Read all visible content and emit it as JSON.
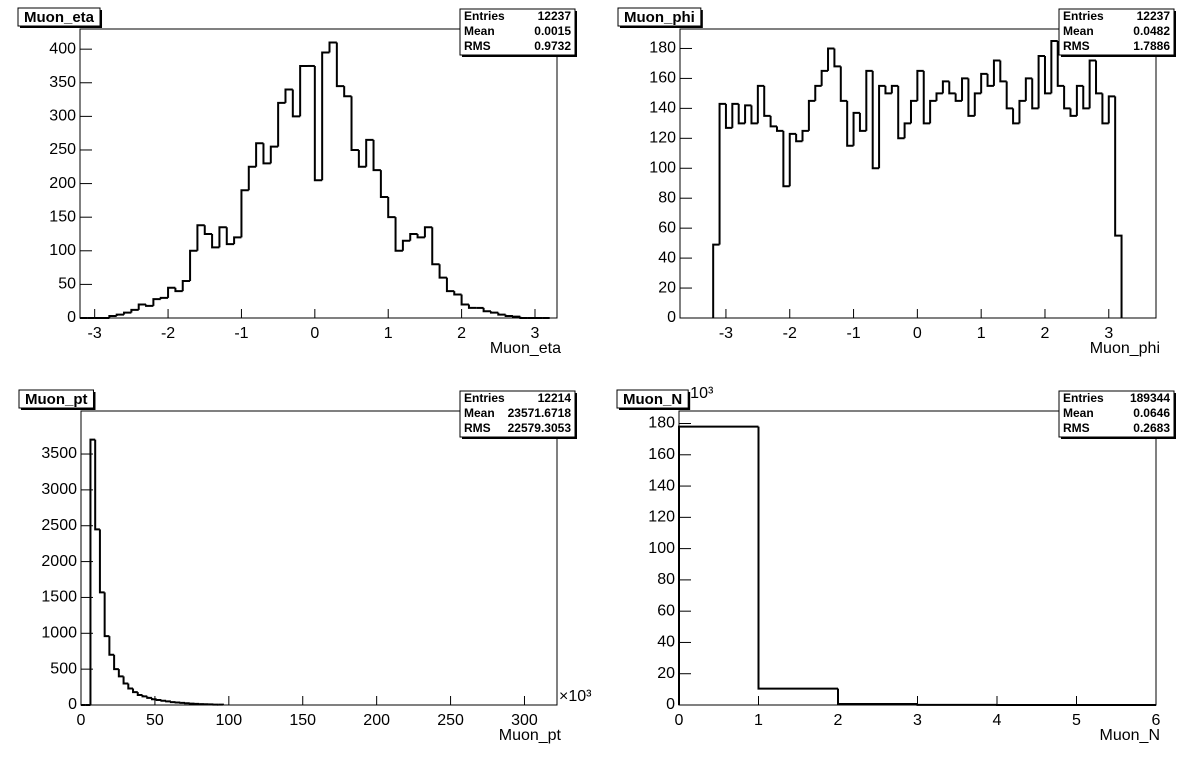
{
  "chart_data": [
    {
      "type": "histogram",
      "title": "Muon_eta",
      "x_label": "Muon_eta",
      "stats": [
        {
          "label": "Entries",
          "value": 12237
        },
        {
          "label": "Mean",
          "value": 0.0015
        },
        {
          "label": "RMS",
          "value": 0.9732
        }
      ],
      "bins": [
        -3.2,
        -3.1,
        -3.0,
        -2.9,
        -2.8,
        -2.7,
        -2.6,
        -2.5,
        -2.4,
        -2.3,
        -2.2,
        -2.1,
        -2.0,
        -1.9,
        -1.8,
        -1.7,
        -1.6,
        -1.5,
        -1.4,
        -1.3,
        -1.2,
        -1.1,
        -1.0,
        -0.9,
        -0.8,
        -0.7,
        -0.6,
        -0.5,
        -0.4,
        -0.3,
        -0.2,
        -0.1,
        0.0,
        0.1,
        0.2,
        0.3,
        0.4,
        0.5,
        0.6,
        0.7,
        0.8,
        0.9,
        1.0,
        1.1,
        1.2,
        1.3,
        1.4,
        1.5,
        1.6,
        1.7,
        1.8,
        1.9,
        2.0,
        2.1,
        2.2,
        2.3,
        2.4,
        2.5,
        2.6,
        2.7,
        2.8,
        2.9,
        3.0,
        3.1,
        3.2
      ],
      "values": [
        0,
        0,
        0,
        0,
        3,
        5,
        8,
        12,
        20,
        18,
        28,
        30,
        45,
        40,
        55,
        100,
        138,
        125,
        105,
        135,
        110,
        120,
        190,
        225,
        260,
        230,
        255,
        320,
        340,
        300,
        375,
        375,
        205,
        395,
        410,
        345,
        330,
        250,
        225,
        265,
        220,
        180,
        150,
        100,
        115,
        125,
        120,
        135,
        80,
        60,
        40,
        35,
        20,
        15,
        15,
        10,
        8,
        5,
        3,
        2,
        0,
        0,
        0,
        0
      ],
      "color": "#000000",
      "xlim": [
        -3.2,
        3.3
      ],
      "xticks": [
        -3,
        -2,
        -1,
        0,
        1,
        2,
        3
      ],
      "ylim": [
        0,
        430
      ],
      "yticks": [
        0,
        50,
        100,
        150,
        200,
        250,
        300,
        350,
        400
      ]
    },
    {
      "type": "histogram",
      "title": "Muon_phi",
      "x_label": "Muon_phi",
      "stats": [
        {
          "label": "Entries",
          "value": 12237
        },
        {
          "label": "Mean",
          "value": 0.0482
        },
        {
          "label": "RMS",
          "value": 1.7886
        }
      ],
      "bins": [
        -3.2,
        -3.1,
        -3.0,
        -2.9,
        -2.8,
        -2.7,
        -2.6,
        -2.5,
        -2.4,
        -2.3,
        -2.2,
        -2.1,
        -2.0,
        -1.9,
        -1.8,
        -1.7,
        -1.6,
        -1.5,
        -1.4,
        -1.3,
        -1.2,
        -1.1,
        -1.0,
        -0.9,
        -0.8,
        -0.7,
        -0.6,
        -0.5,
        -0.4,
        -0.3,
        -0.2,
        -0.1,
        0.0,
        0.1,
        0.2,
        0.3,
        0.4,
        0.5,
        0.6,
        0.7,
        0.8,
        0.9,
        1.0,
        1.1,
        1.2,
        1.3,
        1.4,
        1.5,
        1.6,
        1.7,
        1.8,
        1.9,
        2.0,
        2.1,
        2.2,
        2.3,
        2.4,
        2.5,
        2.6,
        2.7,
        2.8,
        2.9,
        3.0,
        3.1,
        3.2
      ],
      "values": [
        49,
        143,
        127,
        143,
        130,
        142,
        130,
        155,
        135,
        128,
        125,
        88,
        123,
        118,
        125,
        145,
        155,
        165,
        180,
        168,
        145,
        115,
        137,
        125,
        165,
        100,
        155,
        150,
        155,
        120,
        130,
        145,
        165,
        130,
        145,
        150,
        158,
        150,
        145,
        160,
        135,
        150,
        163,
        155,
        172,
        158,
        140,
        130,
        145,
        160,
        140,
        175,
        150,
        185,
        155,
        140,
        135,
        155,
        140,
        172,
        150,
        130,
        148,
        55
      ],
      "color": "#000000",
      "xlim": [
        -3.72,
        3.74
      ],
      "xticks": [
        -3,
        -2,
        -1,
        0,
        1,
        2,
        3
      ],
      "ylim": [
        0,
        193
      ],
      "yticks": [
        0,
        20,
        40,
        60,
        80,
        100,
        120,
        140,
        160,
        180
      ]
    },
    {
      "type": "histogram",
      "title": "Muon_pt",
      "x_label": "Muon_pt",
      "x_scale_label": "×10³",
      "stats": [
        {
          "label": "Entries",
          "value": 12214
        },
        {
          "label": "Mean",
          "value": 23571.6718
        },
        {
          "label": "RMS",
          "value": 22579.3053
        }
      ],
      "bins": [
        0,
        3.2,
        6.4,
        9.6,
        12.8,
        16,
        19.2,
        22.4,
        25.6,
        28.8,
        32,
        35.2,
        38.4,
        41.6,
        44.8,
        48,
        51.2,
        54.4,
        57.6,
        60.8,
        64,
        67.2,
        70.4,
        73.6,
        76.8,
        80,
        83.2,
        86.4,
        89.6,
        92.8,
        96
      ],
      "values": [
        0,
        0,
        3700,
        2450,
        1570,
        960,
        700,
        500,
        400,
        300,
        230,
        180,
        140,
        120,
        100,
        80,
        70,
        60,
        50,
        40,
        35,
        30,
        25,
        20,
        15,
        12,
        10,
        8,
        6,
        5
      ],
      "color": "#000000",
      "xlim": [
        0,
        322
      ],
      "xticks": [
        0,
        50,
        100,
        150,
        200,
        250,
        300
      ],
      "ylim": [
        0,
        4100
      ],
      "yticks": [
        0,
        500,
        1000,
        1500,
        2000,
        2500,
        3000,
        3500
      ]
    },
    {
      "type": "histogram",
      "title": "Muon_N",
      "x_label": "Muon_N",
      "y_scale_label": "10³",
      "stats": [
        {
          "label": "Entries",
          "value": 189344
        },
        {
          "label": "Mean",
          "value": 0.0646
        },
        {
          "label": "RMS",
          "value": 0.2683
        }
      ],
      "bins": [
        0,
        1,
        2,
        3,
        4,
        5,
        6
      ],
      "values": [
        178,
        10.5,
        0.6,
        0.1,
        0,
        0
      ],
      "color": "#000000",
      "xlim": [
        0,
        6
      ],
      "xticks": [
        0,
        1,
        2,
        3,
        4,
        5,
        6
      ],
      "ylim": [
        0,
        188
      ],
      "yticks": [
        0,
        20,
        40,
        60,
        80,
        100,
        120,
        140,
        160,
        180
      ]
    }
  ]
}
